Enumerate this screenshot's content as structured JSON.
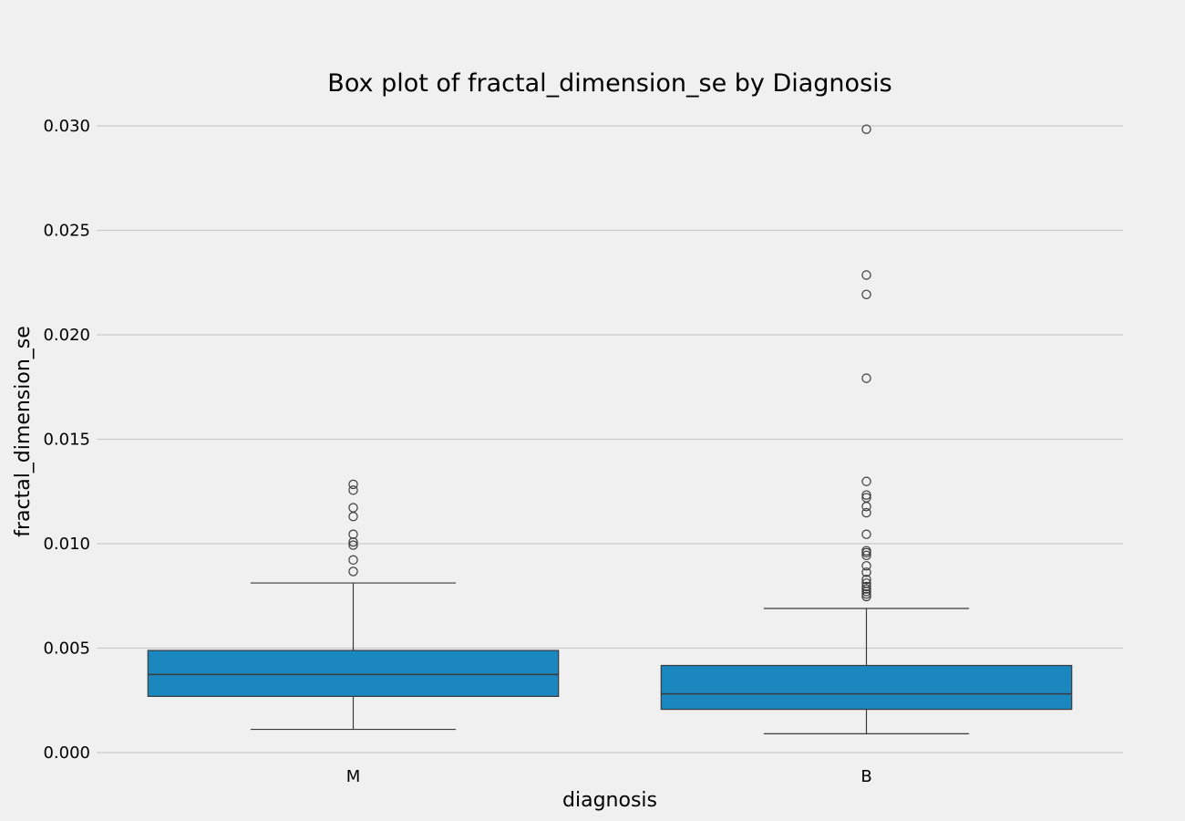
{
  "chart_data": {
    "type": "box",
    "title": "Box plot of fractal_dimension_se by Diagnosis",
    "xlabel": "diagnosis",
    "ylabel": "fractal_dimension_se",
    "ylim": [
      0,
      0.03
    ],
    "yticks": [
      "0.000",
      "0.005",
      "0.010",
      "0.015",
      "0.020",
      "0.025",
      "0.030"
    ],
    "ytick_values": [
      0,
      0.005,
      0.01,
      0.015,
      0.02,
      0.025,
      0.03
    ],
    "grid": "horizontal",
    "box_color": "#1a87be",
    "categories": [
      "M",
      "B"
    ],
    "boxes": [
      {
        "category": "M",
        "whisker_low": 0.00111,
        "q1": 0.00269,
        "median": 0.00374,
        "q3": 0.00489,
        "whisker_high": 0.00812,
        "outliers": [
          0.01284,
          0.01256,
          0.01172,
          0.0113,
          0.01045,
          0.01008,
          0.00993,
          0.00922,
          0.00867
        ]
      },
      {
        "category": "B",
        "whisker_low": 0.0009,
        "q1": 0.00207,
        "median": 0.00281,
        "q3": 0.00417,
        "whisker_high": 0.0069,
        "outliers": [
          0.02984,
          0.02286,
          0.02193,
          0.01792,
          0.01298,
          0.01233,
          0.0122,
          0.01178,
          0.01148,
          0.01045,
          0.00966,
          0.00957,
          0.00944,
          0.00894,
          0.00863,
          0.00829,
          0.00811,
          0.00795,
          0.00783,
          0.00771,
          0.00759,
          0.00747
        ]
      }
    ]
  }
}
